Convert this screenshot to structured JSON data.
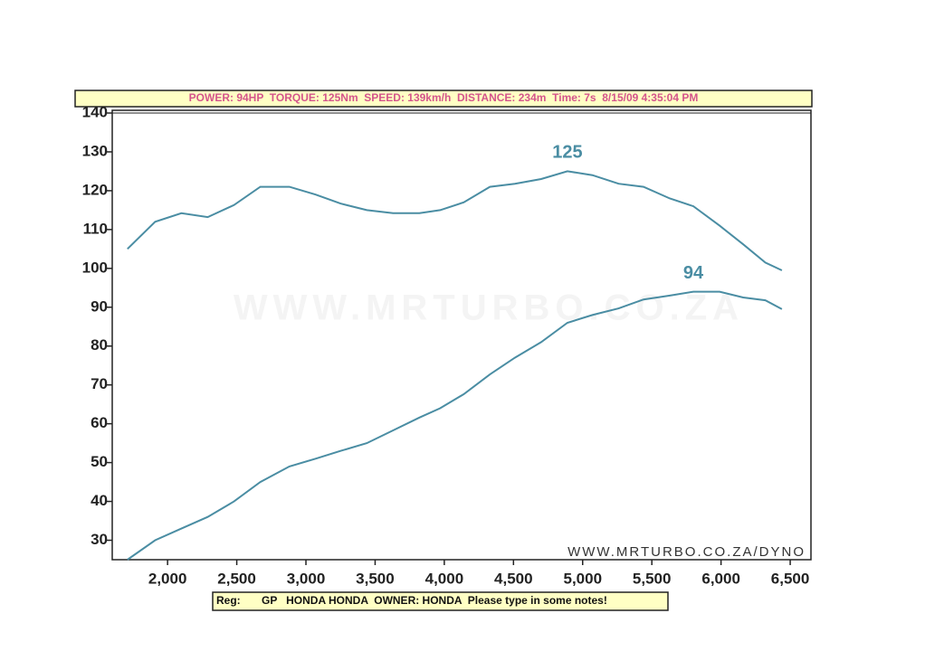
{
  "chart_data": {
    "type": "line",
    "title": "POWER: 94HP  TORQUE: 125Nm  SPEED: 139km/h  DISTANCE: 234m  Time: 7s  8/15/09 4:35:04 PM",
    "notes": "Reg:       GP   HONDA HONDA  OWNER: HONDA  Please type in some notes!",
    "watermark": "WWW.MRTURBO.CO.ZA",
    "credit": "WWW.MRTURBO.CO.ZA/DYNO",
    "annotations": [
      "125",
      "94"
    ],
    "x": [
      1710,
      1910,
      2100,
      2290,
      2480,
      2670,
      2880,
      3070,
      3250,
      3440,
      3630,
      3820,
      3970,
      4140,
      4330,
      4510,
      4700,
      4890,
      5070,
      5260,
      5440,
      5630,
      5800,
      5990,
      6160,
      6320,
      6440
    ],
    "series": [
      {
        "color": "#4a8da3",
        "values": [
          105,
          112,
          114.2,
          113.2,
          116.3,
          121,
          121,
          119,
          116.7,
          115,
          114.2,
          114.2,
          115,
          117,
          121,
          121.8,
          123,
          125,
          124,
          121.8,
          121,
          118,
          116,
          111,
          106.2,
          101.5,
          99.5
        ]
      },
      {
        "color": "#4a8da3",
        "values": [
          25,
          30,
          33,
          36,
          40,
          45,
          49,
          51,
          53,
          55,
          58.3,
          61.6,
          64,
          67.6,
          72.7,
          77,
          81,
          86,
          88,
          89.7,
          92,
          93,
          94,
          94,
          92.5,
          91.8,
          89.5
        ]
      }
    ],
    "xlim": [
      1600,
      6650
    ],
    "ylim": [
      25,
      140
    ],
    "xticks": [
      {
        "value": 2000,
        "label": "2,000"
      },
      {
        "value": 2500,
        "label": "2,500"
      },
      {
        "value": 3000,
        "label": "3,000"
      },
      {
        "value": 3500,
        "label": "3,500"
      },
      {
        "value": 4000,
        "label": "4,000"
      },
      {
        "value": 4500,
        "label": "4,500"
      },
      {
        "value": 5000,
        "label": "5,000"
      },
      {
        "value": 5500,
        "label": "5,500"
      },
      {
        "value": 6000,
        "label": "6,000"
      },
      {
        "value": 6500,
        "label": "6,500"
      }
    ],
    "yticks": [
      30,
      40,
      50,
      60,
      70,
      80,
      90,
      100,
      110,
      120,
      130,
      140
    ]
  }
}
